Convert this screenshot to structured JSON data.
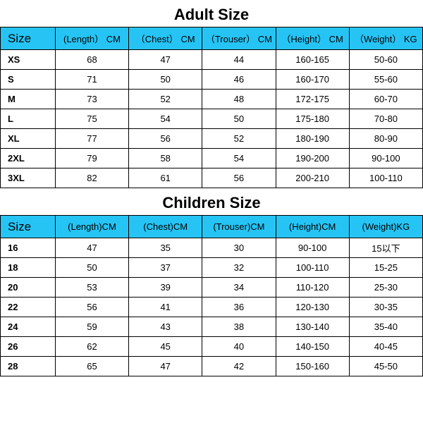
{
  "colors": {
    "header_bg": "#26c4f4",
    "border": "#000000",
    "text": "#000000",
    "bg": "#ffffff"
  },
  "adult": {
    "title": "Adult Size",
    "columns": [
      "Size",
      "(Length） CM",
      "（Chest） CM",
      "（Trouser） CM",
      "（Height） CM",
      "（Weight） KG"
    ],
    "rows": [
      [
        "XS",
        "68",
        "47",
        "44",
        "160-165",
        "50-60"
      ],
      [
        "S",
        "71",
        "50",
        "46",
        "160-170",
        "55-60"
      ],
      [
        "M",
        "73",
        "52",
        "48",
        "172-175",
        "60-70"
      ],
      [
        "L",
        "75",
        "54",
        "50",
        "175-180",
        "70-80"
      ],
      [
        "XL",
        "77",
        "56",
        "52",
        "180-190",
        "80-90"
      ],
      [
        "2XL",
        "79",
        "58",
        "54",
        "190-200",
        "90-100"
      ],
      [
        "3XL",
        "82",
        "61",
        "56",
        "200-210",
        "100-110"
      ]
    ]
  },
  "children": {
    "title": "Children Size",
    "columns": [
      "Size",
      "(Length)CM",
      "(Chest)CM",
      "(Trouser)CM",
      "(Height)CM",
      "(Weight)KG"
    ],
    "rows": [
      [
        "16",
        "47",
        "35",
        "30",
        "90-100",
        "15以下"
      ],
      [
        "18",
        "50",
        "37",
        "32",
        "100-110",
        "15-25"
      ],
      [
        "20",
        "53",
        "39",
        "34",
        "110-120",
        "25-30"
      ],
      [
        "22",
        "56",
        "41",
        "36",
        "120-130",
        "30-35"
      ],
      [
        "24",
        "59",
        "43",
        "38",
        "130-140",
        "35-40"
      ],
      [
        "26",
        "62",
        "45",
        "40",
        "140-150",
        "40-45"
      ],
      [
        "28",
        "65",
        "47",
        "42",
        "150-160",
        "45-50"
      ]
    ]
  },
  "col_widths_pct": [
    13,
    17.4,
    17.4,
    17.4,
    17.4,
    17.4
  ]
}
